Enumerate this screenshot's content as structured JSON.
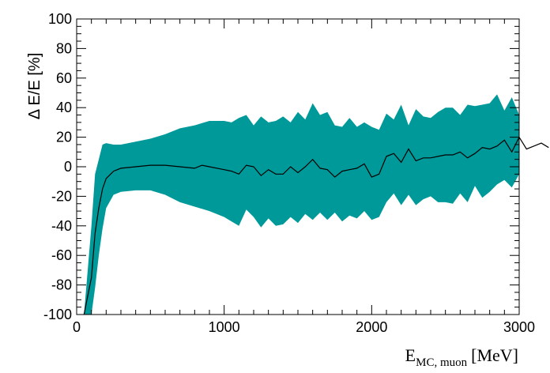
{
  "chart_data": {
    "type": "area",
    "xlabel_main": "E",
    "xlabel_sub": "MC, muon",
    "xlabel_unit": "[MeV]",
    "ylabel": "Δ E/E [%]",
    "xlim": [
      0,
      3000
    ],
    "ylim": [
      -100,
      100
    ],
    "x_ticks": [
      0,
      1000,
      2000,
      3000
    ],
    "y_ticks": [
      -100,
      -80,
      -60,
      -40,
      -20,
      0,
      20,
      40,
      60,
      80,
      100
    ],
    "grid": false,
    "band_color": "#009999",
    "line_color": "#000000",
    "series": [
      {
        "kind": "band",
        "x": [
          50,
          100,
          125,
          150,
          175,
          200,
          250,
          300,
          400,
          500,
          600,
          700,
          800,
          900,
          1000,
          1050,
          1100,
          1150,
          1200,
          1250,
          1300,
          1350,
          1400,
          1450,
          1500,
          1550,
          1600,
          1650,
          1700,
          1750,
          1800,
          1850,
          1900,
          1950,
          2000,
          2050,
          2100,
          2150,
          2200,
          2250,
          2300,
          2350,
          2400,
          2450,
          2500,
          2550,
          2600,
          2650,
          2700,
          2750,
          2800,
          2850,
          2900,
          2950,
          3000
        ],
        "upper": [
          -100,
          -40,
          -5,
          5,
          15,
          16,
          15,
          15,
          17,
          19,
          22,
          26,
          28,
          31,
          31,
          30,
          33,
          35,
          28,
          34,
          30,
          31,
          34,
          30,
          37,
          32,
          43,
          35,
          37,
          28,
          27,
          33,
          27,
          30,
          27,
          25,
          36,
          32,
          42,
          28,
          39,
          34,
          33,
          37,
          40,
          40,
          35,
          42,
          41,
          42,
          43,
          49,
          38,
          47,
          35
        ],
        "lower": [
          -100,
          -100,
          -82,
          -60,
          -42,
          -28,
          -19,
          -17,
          -16,
          -16,
          -19,
          -24,
          -27,
          -30,
          -34,
          -37,
          -40,
          -29,
          -34,
          -41,
          -35,
          -40,
          -39,
          -34,
          -38,
          -32,
          -36,
          -31,
          -36,
          -31,
          -37,
          -33,
          -35,
          -30,
          -36,
          -34,
          -24,
          -18,
          -26,
          -19,
          -26,
          -22,
          -20,
          -24,
          -24,
          -25,
          -18,
          -24,
          -13,
          -21,
          -17,
          -12,
          -9,
          -14,
          -5
        ]
      },
      {
        "kind": "line",
        "x": [
          50,
          100,
          125,
          150,
          175,
          200,
          250,
          300,
          400,
          500,
          600,
          700,
          800,
          850,
          900,
          1000,
          1050,
          1100,
          1150,
          1200,
          1250,
          1300,
          1350,
          1400,
          1450,
          1500,
          1550,
          1600,
          1650,
          1700,
          1750,
          1800,
          1850,
          1900,
          1950,
          2000,
          2050,
          2100,
          2150,
          2200,
          2250,
          2300,
          2350,
          2400,
          2450,
          2500,
          2550,
          2600,
          2650,
          2700,
          2750,
          2800,
          2850,
          2900,
          2950,
          3000,
          3050,
          3100,
          3150,
          3200
        ],
        "y": [
          -100,
          -75,
          -45,
          -28,
          -15,
          -8,
          -3,
          -1,
          0,
          1,
          1,
          0,
          -1,
          1,
          0,
          -2,
          -3,
          -5,
          1,
          0,
          -6,
          -2,
          -5,
          -5,
          0,
          -4,
          0,
          5,
          -1,
          -2,
          -7,
          -3,
          -2,
          -1,
          2,
          -7,
          -5,
          7,
          9,
          3,
          12,
          4,
          6,
          6,
          7,
          8,
          8,
          10,
          6,
          9,
          13,
          12,
          14,
          18,
          10,
          20,
          12,
          14,
          16,
          13
        ]
      }
    ]
  }
}
